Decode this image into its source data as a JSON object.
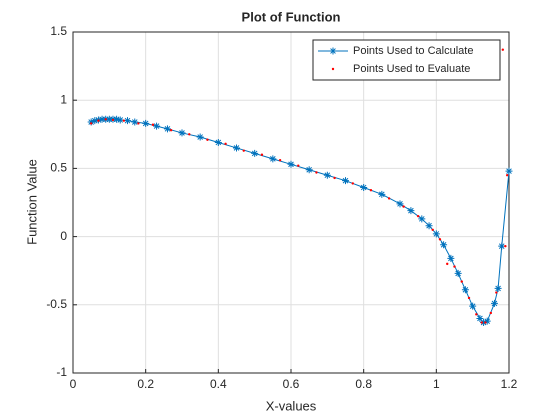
{
  "chart_data": {
    "type": "line",
    "title": "Plot of Function",
    "xlabel": "X-values",
    "ylabel": "Function Value",
    "xlim": [
      0,
      1.2
    ],
    "ylim": [
      -1,
      1.5
    ],
    "xticks": [
      0,
      0.2,
      0.4,
      0.6,
      0.8,
      1,
      1.2
    ],
    "yticks": [
      -1,
      -0.5,
      0,
      0.5,
      1,
      1.5
    ],
    "grid": true,
    "legend": "northeast",
    "series": [
      {
        "name": "Points Used to Calculate",
        "color": "#0072bd",
        "marker": "star",
        "line": true,
        "x": [
          0.05,
          0.06,
          0.07,
          0.08,
          0.09,
          0.1,
          0.11,
          0.12,
          0.13,
          0.15,
          0.17,
          0.2,
          0.23,
          0.26,
          0.3,
          0.35,
          0.4,
          0.45,
          0.5,
          0.55,
          0.6,
          0.65,
          0.7,
          0.75,
          0.8,
          0.85,
          0.9,
          0.93,
          0.96,
          0.98,
          1.0,
          1.02,
          1.04,
          1.06,
          1.08,
          1.1,
          1.12,
          1.13,
          1.14,
          1.16,
          1.17,
          1.18,
          1.2
        ],
        "values": [
          0.84,
          0.85,
          0.855,
          0.86,
          0.86,
          0.86,
          0.86,
          0.86,
          0.855,
          0.85,
          0.84,
          0.83,
          0.81,
          0.79,
          0.76,
          0.73,
          0.69,
          0.65,
          0.61,
          0.57,
          0.53,
          0.49,
          0.45,
          0.41,
          0.36,
          0.31,
          0.24,
          0.19,
          0.13,
          0.08,
          0.02,
          -0.06,
          -0.16,
          -0.27,
          -0.39,
          -0.51,
          -0.6,
          -0.63,
          -0.62,
          -0.49,
          -0.38,
          -0.07,
          0.48
        ]
      },
      {
        "name": "Points Used to Evaluate",
        "color": "#ff0000",
        "marker": "dot",
        "line": false,
        "x": [
          0.05,
          0.07,
          0.09,
          0.11,
          0.14,
          0.18,
          0.22,
          0.27,
          0.32,
          0.37,
          0.42,
          0.47,
          0.52,
          0.57,
          0.62,
          0.67,
          0.72,
          0.77,
          0.82,
          0.87,
          0.91,
          0.95,
          0.99,
          1.01,
          1.03,
          1.05,
          1.07,
          1.09,
          1.11,
          1.125,
          1.135,
          1.15,
          1.165,
          1.19,
          1.195,
          1.183
        ],
        "values": [
          0.83,
          0.85,
          0.86,
          0.855,
          0.85,
          0.83,
          0.82,
          0.78,
          0.75,
          0.71,
          0.68,
          0.63,
          0.6,
          0.56,
          0.52,
          0.47,
          0.43,
          0.39,
          0.34,
          0.28,
          0.22,
          0.15,
          0.05,
          -0.02,
          -0.2,
          -0.22,
          -0.33,
          -0.45,
          -0.57,
          -0.63,
          -0.63,
          -0.56,
          -0.41,
          -0.07,
          0.45,
          1.37
        ]
      }
    ]
  }
}
